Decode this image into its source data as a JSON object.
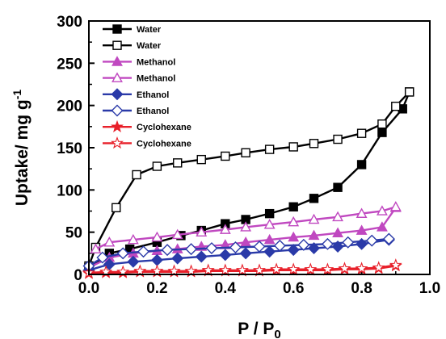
{
  "chart_data": {
    "type": "line",
    "xlabel_main": "P / P",
    "xlabel_sub": "0",
    "ylabel_main": "Uptake/ mg g",
    "ylabel_sup": "-1",
    "xlim": [
      0,
      1.0
    ],
    "ylim": [
      0,
      300
    ],
    "xticks": [
      "0.0",
      "0.2",
      "0.4",
      "0.6",
      "0.8",
      "1.0"
    ],
    "yticks": [
      "0",
      "50",
      "100",
      "150",
      "200",
      "250",
      "300"
    ],
    "legend_position": "top-left",
    "series": [
      {
        "name": "Water",
        "color": "#000000",
        "marker": "square",
        "filled": true,
        "points": [
          [
            0.0,
            8
          ],
          [
            0.06,
            25
          ],
          [
            0.12,
            30
          ],
          [
            0.2,
            38
          ],
          [
            0.27,
            46
          ],
          [
            0.33,
            52
          ],
          [
            0.4,
            60
          ],
          [
            0.46,
            65
          ],
          [
            0.53,
            72
          ],
          [
            0.6,
            80
          ],
          [
            0.66,
            90
          ],
          [
            0.73,
            103
          ],
          [
            0.8,
            130
          ],
          [
            0.86,
            168
          ],
          [
            0.92,
            196
          ],
          [
            0.94,
            216
          ]
        ]
      },
      {
        "name": "Water",
        "color": "#000000",
        "marker": "square",
        "filled": false,
        "points": [
          [
            0.94,
            216
          ],
          [
            0.9,
            199
          ],
          [
            0.86,
            178
          ],
          [
            0.8,
            167
          ],
          [
            0.73,
            160
          ],
          [
            0.66,
            155
          ],
          [
            0.6,
            151
          ],
          [
            0.53,
            148
          ],
          [
            0.46,
            144
          ],
          [
            0.4,
            140
          ],
          [
            0.33,
            136
          ],
          [
            0.26,
            132
          ],
          [
            0.2,
            128
          ],
          [
            0.14,
            118
          ],
          [
            0.08,
            79
          ],
          [
            0.02,
            32
          ],
          [
            0.0,
            10
          ]
        ]
      },
      {
        "name": "Methanol",
        "color": "#c048c0",
        "marker": "triangle",
        "filled": true,
        "points": [
          [
            0.0,
            8
          ],
          [
            0.06,
            20
          ],
          [
            0.13,
            25
          ],
          [
            0.2,
            28
          ],
          [
            0.26,
            30
          ],
          [
            0.33,
            33
          ],
          [
            0.4,
            35
          ],
          [
            0.46,
            38
          ],
          [
            0.53,
            41
          ],
          [
            0.6,
            44
          ],
          [
            0.66,
            46
          ],
          [
            0.73,
            49
          ],
          [
            0.8,
            52
          ],
          [
            0.86,
            56
          ],
          [
            0.9,
            79
          ]
        ]
      },
      {
        "name": "Methanol",
        "color": "#c048c0",
        "marker": "triangle",
        "filled": false,
        "points": [
          [
            0.9,
            80
          ],
          [
            0.86,
            75
          ],
          [
            0.8,
            72
          ],
          [
            0.73,
            68
          ],
          [
            0.66,
            65
          ],
          [
            0.6,
            62
          ],
          [
            0.53,
            59
          ],
          [
            0.46,
            56
          ],
          [
            0.4,
            53
          ],
          [
            0.33,
            50
          ],
          [
            0.26,
            47
          ],
          [
            0.2,
            44
          ],
          [
            0.13,
            41
          ],
          [
            0.06,
            38
          ],
          [
            0.02,
            30
          ]
        ]
      },
      {
        "name": "Ethanol",
        "color": "#2a3aa8",
        "marker": "diamond",
        "filled": true,
        "points": [
          [
            0.0,
            5
          ],
          [
            0.06,
            12
          ],
          [
            0.13,
            15
          ],
          [
            0.2,
            17
          ],
          [
            0.26,
            19
          ],
          [
            0.33,
            21
          ],
          [
            0.4,
            23
          ],
          [
            0.46,
            25
          ],
          [
            0.53,
            27
          ],
          [
            0.6,
            29
          ],
          [
            0.66,
            31
          ],
          [
            0.73,
            33
          ],
          [
            0.8,
            36
          ],
          [
            0.88,
            41
          ]
        ]
      },
      {
        "name": "Ethanol",
        "color": "#2a3aa8",
        "marker": "diamond",
        "filled": false,
        "points": [
          [
            0.88,
            42
          ],
          [
            0.83,
            40
          ],
          [
            0.76,
            38
          ],
          [
            0.7,
            36
          ],
          [
            0.63,
            35
          ],
          [
            0.56,
            34
          ],
          [
            0.5,
            33
          ],
          [
            0.43,
            32
          ],
          [
            0.36,
            31
          ],
          [
            0.3,
            30
          ],
          [
            0.23,
            29
          ],
          [
            0.16,
            27
          ],
          [
            0.1,
            25
          ],
          [
            0.04,
            20
          ],
          [
            0.0,
            10
          ]
        ]
      },
      {
        "name": "Cyclohexane",
        "color": "#e8202a",
        "marker": "star",
        "filled": true,
        "points": [
          [
            0.0,
            1
          ],
          [
            0.05,
            2
          ],
          [
            0.1,
            2
          ],
          [
            0.15,
            3
          ],
          [
            0.2,
            3
          ],
          [
            0.25,
            3
          ],
          [
            0.3,
            3
          ],
          [
            0.35,
            4
          ],
          [
            0.4,
            4
          ],
          [
            0.45,
            4
          ],
          [
            0.5,
            4
          ],
          [
            0.55,
            5
          ],
          [
            0.6,
            5
          ],
          [
            0.65,
            5
          ],
          [
            0.7,
            5
          ],
          [
            0.75,
            6
          ],
          [
            0.8,
            6
          ],
          [
            0.85,
            7
          ],
          [
            0.9,
            10
          ]
        ]
      },
      {
        "name": "Cyclohexane",
        "color": "#e8202a",
        "marker": "star",
        "filled": false,
        "points": [
          [
            0.9,
            11
          ],
          [
            0.85,
            8
          ],
          [
            0.8,
            7
          ],
          [
            0.75,
            7
          ],
          [
            0.7,
            6
          ],
          [
            0.65,
            6
          ],
          [
            0.6,
            6
          ],
          [
            0.55,
            6
          ],
          [
            0.5,
            5
          ],
          [
            0.45,
            5
          ],
          [
            0.4,
            5
          ],
          [
            0.35,
            5
          ],
          [
            0.3,
            4
          ],
          [
            0.25,
            4
          ],
          [
            0.2,
            4
          ],
          [
            0.15,
            4
          ],
          [
            0.1,
            3
          ],
          [
            0.05,
            3
          ],
          [
            0.0,
            2
          ]
        ]
      }
    ]
  }
}
